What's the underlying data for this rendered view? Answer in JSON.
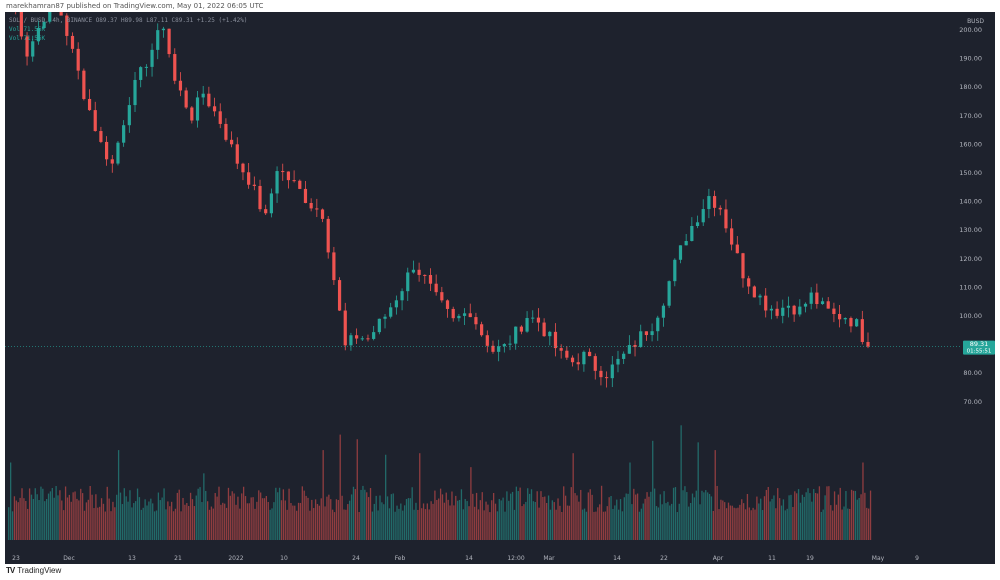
{
  "header": {
    "text": "marekhamran87 published on TradingView.com, May 01, 2022 06:05 UTC"
  },
  "footer": {
    "logo": "TV",
    "brand": "TradingView"
  },
  "legend": {
    "line1": "SOL / BUSD, 4h, BINANCE  O89.37 H89.98 L87.11 C89.31 +1.25 (+1.42%)",
    "line2": "Vol  71.56K",
    "line3": "Vol  71.56K"
  },
  "axis": {
    "currency": "BUSD"
  },
  "last_price": {
    "value": "89.31",
    "countdown": "01:55:51"
  },
  "colors": {
    "background": "#1e222d",
    "up": "#26a69a",
    "down": "#ef5350",
    "axis_text": "#b2b5be"
  },
  "chart_data": {
    "type": "candlestick",
    "symbol": "SOL / BUSD",
    "interval": "4h",
    "exchange": "BINANCE",
    "ylim": [
      75,
      210
    ],
    "y_ticks": [
      70,
      80,
      90,
      100,
      110,
      120,
      130,
      140,
      150,
      160,
      170,
      180,
      190,
      200
    ],
    "x_ticks": [
      "23",
      "Dec",
      "13",
      "21",
      "2022",
      "10",
      "24",
      "Feb",
      "14",
      "12:00",
      "Mar",
      "14",
      "22",
      "Apr",
      "11",
      "19",
      "May",
      "9"
    ],
    "price_path": [
      [
        0,
        215
      ],
      [
        3,
        192
      ],
      [
        6,
        205
      ],
      [
        8,
        212
      ],
      [
        10,
        199
      ],
      [
        13,
        178
      ],
      [
        16,
        160
      ],
      [
        18,
        153
      ],
      [
        21,
        176
      ],
      [
        24,
        189
      ],
      [
        27,
        202
      ],
      [
        29,
        182
      ],
      [
        32,
        170
      ],
      [
        34,
        178
      ],
      [
        37,
        168
      ],
      [
        40,
        154
      ],
      [
        42,
        148
      ],
      [
        45,
        134
      ],
      [
        47,
        152
      ],
      [
        50,
        146
      ],
      [
        53,
        139
      ],
      [
        55,
        136
      ],
      [
        57,
        113
      ],
      [
        59,
        89
      ],
      [
        61,
        93
      ],
      [
        63,
        92
      ],
      [
        66,
        100
      ],
      [
        69,
        110
      ],
      [
        71,
        118
      ],
      [
        73,
        113
      ],
      [
        75,
        106
      ],
      [
        78,
        98
      ],
      [
        81,
        102
      ],
      [
        83,
        94
      ],
      [
        85,
        88
      ],
      [
        87,
        89
      ],
      [
        89,
        94
      ],
      [
        91,
        100
      ],
      [
        93,
        98
      ],
      [
        95,
        92
      ],
      [
        97,
        86
      ],
      [
        99,
        84
      ],
      [
        101,
        86
      ],
      [
        103,
        82
      ],
      [
        105,
        80
      ],
      [
        107,
        84
      ],
      [
        109,
        88
      ],
      [
        111,
        93
      ],
      [
        113,
        97
      ],
      [
        115,
        106
      ],
      [
        117,
        118
      ],
      [
        119,
        128
      ],
      [
        121,
        135
      ],
      [
        123,
        142
      ],
      [
        125,
        138
      ],
      [
        127,
        126
      ],
      [
        129,
        115
      ],
      [
        131,
        109
      ],
      [
        133,
        104
      ],
      [
        135,
        102
      ],
      [
        137,
        104
      ],
      [
        139,
        102
      ],
      [
        141,
        107
      ],
      [
        143,
        103
      ],
      [
        145,
        100
      ],
      [
        147,
        100
      ],
      [
        149,
        97
      ],
      [
        151,
        89
      ]
    ],
    "volume": {
      "baseline_range": [
        18,
        35
      ],
      "spikes": [
        [
          0,
          50
        ],
        [
          19,
          58
        ],
        [
          34,
          43
        ],
        [
          55,
          58
        ],
        [
          58,
          68
        ],
        [
          61,
          65
        ],
        [
          66,
          55
        ],
        [
          72,
          56
        ],
        [
          81,
          47
        ],
        [
          99,
          56
        ],
        [
          109,
          50
        ],
        [
          113,
          64
        ],
        [
          118,
          74
        ],
        [
          121,
          63
        ],
        [
          124,
          58
        ],
        [
          150,
          50
        ]
      ]
    }
  }
}
